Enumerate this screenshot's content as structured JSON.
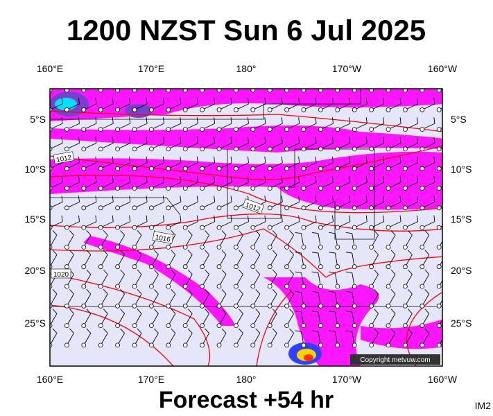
{
  "title": "1200 NZST Sun 6 Jul 2025",
  "longitude_labels": [
    "160°E",
    "170°E",
    "180°",
    "170°W",
    "160°W"
  ],
  "latitude_labels": [
    "5°S",
    "10°S",
    "15°S",
    "20°S",
    "25°S"
  ],
  "isobar_labels": [
    "1012",
    "1012",
    "1016",
    "1020"
  ],
  "copyright": "Copyright metvuw.com",
  "footer": "Forecast +54 hr",
  "image_id": "IM2"
}
